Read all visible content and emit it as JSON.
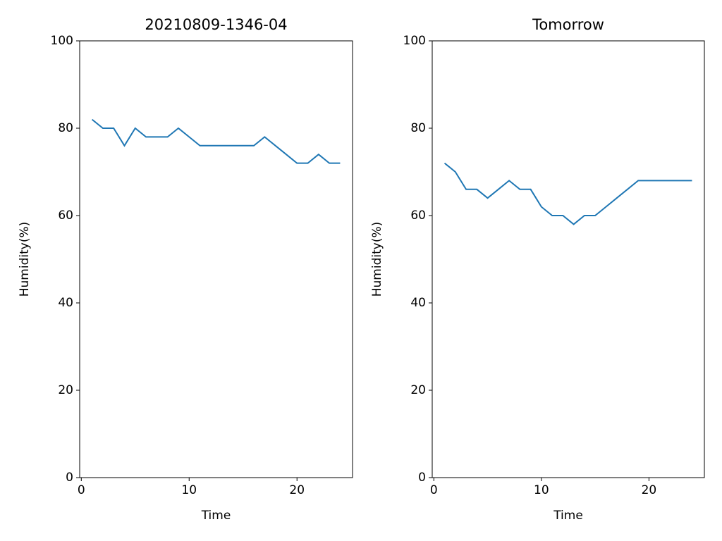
{
  "chart_data": [
    {
      "type": "line",
      "title": "20210809-1346-04",
      "x_label": "Time",
      "y_label": "Humidity(%)",
      "x": [
        1,
        2,
        3,
        4,
        5,
        6,
        7,
        8,
        9,
        10,
        11,
        12,
        13,
        14,
        15,
        16,
        17,
        18,
        19,
        20,
        21,
        22,
        23,
        24
      ],
      "values": [
        82,
        80,
        80,
        76,
        80,
        78,
        78,
        78,
        80,
        78,
        76,
        76,
        76,
        76,
        76,
        76,
        78,
        76,
        74,
        72,
        72,
        74,
        72,
        72
      ],
      "color": "#1f77b4",
      "xlim": [
        -0.15,
        25.15
      ],
      "xticks": [
        0,
        10,
        20
      ],
      "ylim": [
        0,
        100
      ],
      "yticks": [
        0,
        20,
        40,
        60,
        80,
        100
      ]
    },
    {
      "type": "line",
      "title": "Tomorrow",
      "x_label": "Time",
      "y_label": "Humidity(%)",
      "x": [
        1,
        2,
        3,
        4,
        5,
        6,
        7,
        8,
        9,
        10,
        11,
        12,
        13,
        14,
        15,
        16,
        17,
        18,
        19,
        20,
        21,
        22,
        23,
        24
      ],
      "values": [
        72,
        70,
        66,
        66,
        64,
        66,
        68,
        66,
        66,
        62,
        60,
        60,
        58,
        60,
        60,
        62,
        64,
        66,
        68,
        68,
        68,
        68,
        68,
        68
      ],
      "color": "#1f77b4",
      "xlim": [
        -0.15,
        25.15
      ],
      "xticks": [
        0,
        10,
        20
      ],
      "ylim": [
        0,
        100
      ],
      "yticks": [
        0,
        20,
        40,
        60,
        80,
        100
      ]
    }
  ]
}
